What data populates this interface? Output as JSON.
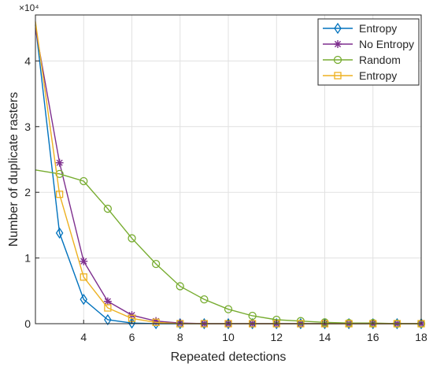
{
  "chart_data": {
    "type": "line",
    "xlabel": "Repeated detections",
    "ylabel": "Number of duplicate rasters",
    "exponent_label": "×10⁴",
    "xlim": [
      2,
      18
    ],
    "ylim": [
      0,
      4.7
    ],
    "xticks": [
      4,
      6,
      8,
      10,
      12,
      14,
      16,
      18
    ],
    "yticks": [
      0,
      1,
      2,
      3,
      4
    ],
    "grid": true,
    "legend_position": "top-right",
    "x": [
      2,
      3,
      4,
      5,
      6,
      7,
      8,
      9,
      10,
      11,
      12,
      13,
      14,
      15,
      16,
      17,
      18
    ],
    "series": [
      {
        "name": "Entropy",
        "color": "#0072BD",
        "marker": "diamond",
        "values": [
          4.55,
          1.38,
          0.37,
          0.06,
          0.01,
          0.0,
          0.0,
          0.0,
          0.0,
          0.0,
          0.0,
          0.0,
          0.0,
          0.0,
          0.0,
          0.0,
          0.0
        ]
      },
      {
        "name": "No Entropy",
        "color": "#7E2F8E",
        "marker": "asterisk",
        "values": [
          4.5,
          2.45,
          0.95,
          0.34,
          0.13,
          0.04,
          0.01,
          0.0,
          0.0,
          0.0,
          0.0,
          0.0,
          0.0,
          0.0,
          0.0,
          0.0,
          0.0
        ]
      },
      {
        "name": "Random",
        "color": "#77AC30",
        "marker": "circle",
        "values": [
          2.34,
          2.28,
          2.17,
          1.75,
          1.3,
          0.91,
          0.57,
          0.37,
          0.22,
          0.12,
          0.06,
          0.04,
          0.02,
          0.01,
          0.01,
          0.0,
          0.0
        ]
      },
      {
        "name": "Entropy",
        "color": "#EDB120",
        "marker": "square",
        "values": [
          4.6,
          1.97,
          0.71,
          0.24,
          0.08,
          0.02,
          0.0,
          0.0,
          0.0,
          0.0,
          0.0,
          0.0,
          0.0,
          0.0,
          0.0,
          0.0,
          0.0
        ]
      }
    ]
  }
}
